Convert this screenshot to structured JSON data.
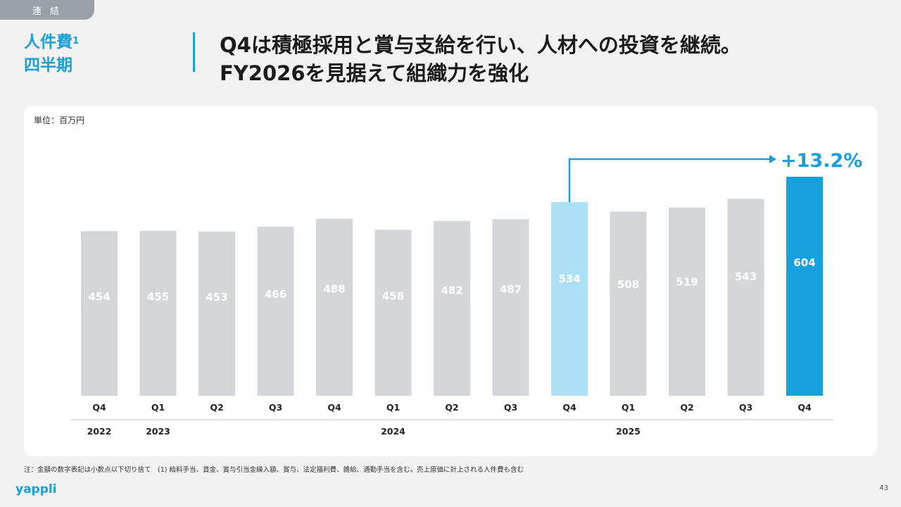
{
  "header": {
    "tag": "連 結",
    "section_title": "人件費",
    "section_sup": "1",
    "section_subtitle": "四半期",
    "headline_line1": "Q4は積極採用と賞与支給を行い、人材への投資を継続。",
    "headline_line2": "FY2026を見据えて組織力を強化"
  },
  "colors": {
    "accent": "#1a9fd9",
    "bar_default": "#d5d6da",
    "bar_prev": "#aee0f5",
    "bar_current": "#16a0dc"
  },
  "chart_data": {
    "type": "bar",
    "unit_label": "単位：百万円",
    "categories": [
      "Q4",
      "Q1",
      "Q2",
      "Q3",
      "Q4",
      "Q1",
      "Q2",
      "Q3",
      "Q4",
      "Q1",
      "Q2",
      "Q3",
      "Q4"
    ],
    "values": [
      454,
      455,
      453,
      466,
      488,
      458,
      482,
      487,
      534,
      508,
      519,
      543,
      604
    ],
    "value_labels": [
      "454",
      "455",
      "453",
      "466",
      "488",
      "458",
      "482",
      "487",
      "534",
      "508",
      "519",
      "543",
      "604"
    ],
    "years": [
      {
        "label": "2022",
        "index": 0
      },
      {
        "label": "2023",
        "index": 1
      },
      {
        "label": "2024",
        "index": 5
      },
      {
        "label": "2025",
        "index": 9
      }
    ],
    "highlight_prev_index": 8,
    "highlight_current_index": 12,
    "growth_label": "+13.2%",
    "ylim": [
      0,
      620
    ]
  },
  "footer": {
    "note": "注：金額の数字表記は小数点以下切り捨て　(1) 給料手当、賃金、賞与引当金繰入額、賞与、法定福利費、雑給、通勤手当を含む。売上原価に計上される人件費も含む",
    "logo": "yappli",
    "page_number": "43"
  }
}
